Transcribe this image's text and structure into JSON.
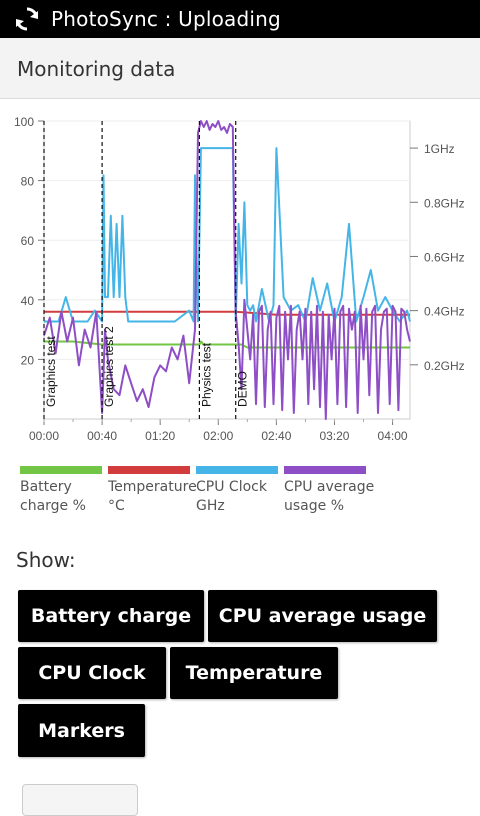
{
  "statusbar": {
    "title": "PhotoSync : Uploading",
    "icon": "sync-icon"
  },
  "section": {
    "title": "Monitoring data"
  },
  "chart_data": {
    "type": "line",
    "x_ticks": [
      "00:00",
      "00:40",
      "01:20",
      "02:00",
      "02:40",
      "03:20",
      "04:00"
    ],
    "y_left_ticks": [
      "100",
      "80",
      "60",
      "40",
      "20"
    ],
    "y_right_ticks": [
      "1GHz",
      "0.8GHz",
      "0.6GHz",
      "0.4GHz",
      "0.2GHz"
    ],
    "ylim_left": [
      0,
      100
    ],
    "ylim_right": [
      0,
      1.1
    ],
    "markers": [
      {
        "label": "Graphics test",
        "x_min": 0
      },
      {
        "label": "Graphics test 2",
        "x_min": 40
      },
      {
        "label": "Physics test",
        "x_min": 107
      },
      {
        "label": "DEMO",
        "x_min": 132
      }
    ],
    "series": [
      {
        "name": "Battery charge %",
        "color": "#72c545",
        "x": [
          0,
          20,
          40,
          80,
          107,
          108,
          110,
          125,
          132,
          136,
          140,
          180,
          200,
          230,
          252
        ],
        "y": [
          26,
          26,
          25,
          25,
          25,
          26,
          25,
          25,
          25,
          25,
          24,
          24,
          24,
          24,
          24
        ]
      },
      {
        "name": "Temperature °C",
        "color": "#d23c3c",
        "x": [
          0,
          40,
          80,
          107,
          132,
          160,
          200,
          252
        ],
        "y": [
          36,
          36,
          36,
          36,
          36,
          35,
          35,
          35
        ]
      },
      {
        "name": "CPU Clock GHz",
        "color": "#45b5e8",
        "x": [
          0,
          5,
          10,
          15,
          20,
          25,
          30,
          35,
          40,
          41,
          42,
          44,
          46,
          48,
          50,
          52,
          54,
          56,
          58,
          60,
          62,
          64,
          66,
          68,
          70,
          80,
          90,
          100,
          103,
          104,
          106,
          108,
          110,
          115,
          120,
          125,
          130,
          132,
          134,
          136,
          138,
          140,
          142,
          144,
          146,
          150,
          155,
          158,
          160,
          165,
          170,
          175,
          180,
          185,
          190,
          195,
          200,
          205,
          210,
          215,
          220,
          225,
          230,
          235,
          240,
          245,
          250,
          252
        ],
        "y": [
          0.36,
          0.36,
          0.36,
          0.45,
          0.36,
          0.36,
          0.36,
          0.4,
          0.36,
          0.9,
          0.45,
          0.45,
          0.75,
          0.45,
          0.72,
          0.45,
          0.75,
          0.45,
          0.36,
          0.36,
          0.36,
          0.36,
          0.36,
          0.36,
          0.36,
          0.36,
          0.36,
          0.4,
          0.36,
          0.9,
          0.36,
          1.0,
          1.0,
          1.0,
          1.0,
          1.0,
          1.0,
          0.36,
          0.72,
          0.5,
          0.8,
          0.42,
          0.4,
          0.42,
          0.36,
          0.48,
          0.36,
          0.42,
          1.0,
          0.45,
          0.4,
          0.42,
          0.36,
          0.52,
          0.4,
          0.5,
          0.36,
          0.45,
          0.72,
          0.36,
          0.45,
          0.55,
          0.4,
          0.45,
          0.4,
          0.36,
          0.4,
          0.36
        ]
      },
      {
        "name": "CPU average usage %",
        "color": "#8e4ec6",
        "x": [
          0,
          4,
          8,
          12,
          16,
          20,
          24,
          28,
          32,
          36,
          40,
          42,
          44,
          48,
          52,
          56,
          60,
          64,
          68,
          72,
          76,
          80,
          84,
          88,
          92,
          96,
          100,
          104,
          106,
          108,
          110,
          112,
          114,
          116,
          118,
          120,
          122,
          124,
          126,
          128,
          130,
          132,
          134,
          136,
          138,
          140,
          142,
          144,
          146,
          148,
          150,
          152,
          154,
          156,
          158,
          160,
          162,
          164,
          166,
          168,
          170,
          172,
          174,
          176,
          178,
          180,
          182,
          184,
          186,
          188,
          190,
          192,
          194,
          196,
          198,
          200,
          202,
          204,
          206,
          208,
          210,
          212,
          214,
          216,
          218,
          220,
          222,
          224,
          226,
          228,
          230,
          232,
          234,
          236,
          238,
          240,
          242,
          244,
          246,
          248,
          250,
          252
        ],
        "y": [
          28,
          34,
          22,
          36,
          26,
          34,
          18,
          30,
          24,
          36,
          2,
          30,
          20,
          10,
          8,
          18,
          12,
          6,
          10,
          4,
          14,
          18,
          16,
          24,
          20,
          28,
          12,
          30,
          96,
          100,
          98,
          100,
          97,
          99,
          98,
          100,
          97,
          98,
          96,
          99,
          98,
          36,
          25,
          10,
          40,
          30,
          20,
          35,
          5,
          36,
          38,
          4,
          30,
          36,
          5,
          34,
          38,
          3,
          36,
          20,
          38,
          2,
          30,
          36,
          20,
          37,
          5,
          36,
          10,
          38,
          4,
          36,
          0,
          35,
          20,
          37,
          5,
          36,
          38,
          4,
          37,
          30,
          36,
          2,
          38,
          20,
          37,
          8,
          36,
          38,
          2,
          30,
          36,
          37,
          5,
          38,
          36,
          3,
          37,
          36,
          30,
          26
        ]
      }
    ]
  },
  "legend": [
    {
      "label": "Battery\ncharge %",
      "color": "#72c545"
    },
    {
      "label": "Temperature\n°C",
      "color": "#d23c3c"
    },
    {
      "label": "CPU Clock\nGHz",
      "color": "#45b5e8"
    },
    {
      "label": "CPU average\nusage %",
      "color": "#8e4ec6"
    }
  ],
  "show": {
    "label": "Show:",
    "buttons": [
      "Battery charge",
      "CPU average usage",
      "CPU Clock",
      "Temperature",
      "Markers"
    ]
  }
}
